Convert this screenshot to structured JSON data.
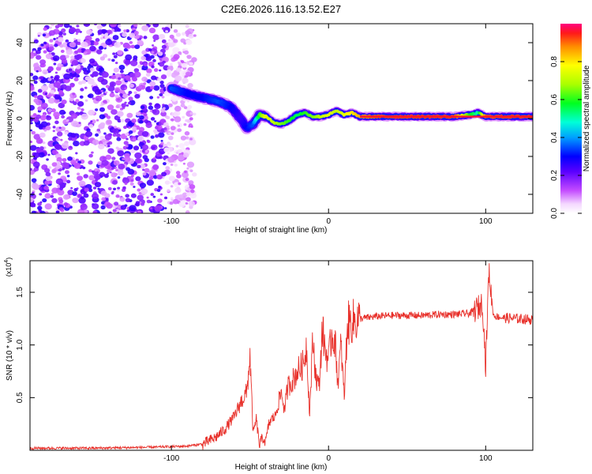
{
  "title": "C2E6.2026.116.13.52.E27",
  "chart_data": [
    {
      "type": "heatmap",
      "xlabel": "Height of straight line (km)",
      "ylabel": "Frequency (Hz)",
      "xlim": [
        -190,
        130
      ],
      "ylim": [
        -50,
        50
      ],
      "x_ticks": [
        -100,
        0,
        100
      ],
      "x_tick_labels": [
        "-100",
        "0",
        "100"
      ],
      "y_ticks": [
        -40,
        -20,
        0,
        20,
        40
      ],
      "y_tick_labels": [
        "-40",
        "-20",
        "0",
        "20",
        "40"
      ],
      "colorbar": {
        "label": "Normalized spectral amplitude",
        "range": [
          0,
          1
        ],
        "ticks": [
          0.0,
          0.2,
          0.4,
          0.6,
          0.8
        ],
        "tick_labels": [
          "0.0",
          "0.2",
          "0.4",
          "0.6",
          "0.8"
        ]
      },
      "ridge": {
        "description_values": "peak frequency (Hz) vs height (km)",
        "x": [
          -100,
          -90,
          -80,
          -70,
          -62,
          -56,
          -52,
          -48,
          -44,
          -40,
          -35,
          -30,
          -25,
          -20,
          -15,
          -10,
          -5,
          0,
          5,
          10,
          15,
          20,
          30,
          40,
          60,
          80,
          90,
          95,
          100,
          110,
          120,
          130
        ],
        "y": [
          16,
          13,
          11,
          9,
          6,
          0,
          -5,
          -3,
          2,
          1,
          -2,
          -3,
          -1,
          2,
          3,
          1,
          1,
          2,
          4,
          2,
          3,
          1,
          1,
          1,
          1,
          1,
          2,
          3,
          1,
          1,
          1,
          1
        ],
        "amplitude": [
          0.35,
          0.3,
          0.3,
          0.35,
          0.3,
          0.25,
          0.3,
          0.35,
          0.6,
          0.75,
          0.7,
          0.65,
          0.6,
          0.55,
          0.6,
          0.65,
          0.7,
          0.75,
          0.7,
          0.75,
          0.8,
          0.85,
          0.9,
          0.92,
          0.92,
          0.92,
          0.6,
          0.5,
          0.9,
          0.92,
          0.92,
          0.92
        ]
      },
      "noise_region": [
        -190,
        -85
      ]
    },
    {
      "type": "line",
      "xlabel": "Height of straight line (km)",
      "ylabel": "SNR (10 * v/v)",
      "y_multiplier": "(x10",
      "y_multiplier_exp": "4",
      "y_multiplier_close": ")",
      "xlim": [
        -190,
        130
      ],
      "ylim": [
        0,
        1.8
      ],
      "x_ticks": [
        -100,
        0,
        100
      ],
      "x_tick_labels": [
        "-100",
        "0",
        "100"
      ],
      "y_ticks": [
        0.5,
        1.0,
        1.5
      ],
      "y_tick_labels": [
        "0.5",
        "1.0",
        "1.5"
      ],
      "series": [
        {
          "name": "SNR",
          "color": "#e8302a",
          "x": [
            -190,
            -150,
            -110,
            -90,
            -80,
            -72,
            -66,
            -60,
            -56,
            -52,
            -50,
            -48,
            -46,
            -44,
            -42,
            -40,
            -38,
            -36,
            -34,
            -32,
            -30,
            -28,
            -26,
            -24,
            -22,
            -20,
            -18,
            -16,
            -14,
            -12,
            -10,
            -8,
            -6,
            -4,
            -2,
            0,
            2,
            4,
            6,
            8,
            10,
            12,
            15,
            20,
            30,
            40,
            50,
            60,
            70,
            80,
            90,
            95,
            98,
            100,
            102,
            105,
            110,
            120,
            130
          ],
          "y": [
            0.02,
            0.02,
            0.03,
            0.04,
            0.06,
            0.12,
            0.2,
            0.32,
            0.45,
            0.55,
            0.9,
            0.15,
            0.3,
            0.05,
            0.12,
            0.08,
            0.25,
            0.3,
            0.32,
            0.45,
            0.55,
            0.38,
            0.6,
            0.65,
            0.68,
            0.75,
            0.78,
            0.82,
            1.0,
            0.35,
            1.05,
            0.7,
            0.6,
            1.15,
            0.95,
            0.85,
            1.1,
            1.05,
            0.65,
            1.0,
            0.5,
            1.2,
            1.22,
            1.25,
            1.27,
            1.28,
            1.28,
            1.28,
            1.29,
            1.29,
            1.3,
            1.35,
            1.4,
            0.8,
            1.7,
            1.28,
            1.26,
            1.25,
            1.24
          ]
        }
      ]
    }
  ]
}
